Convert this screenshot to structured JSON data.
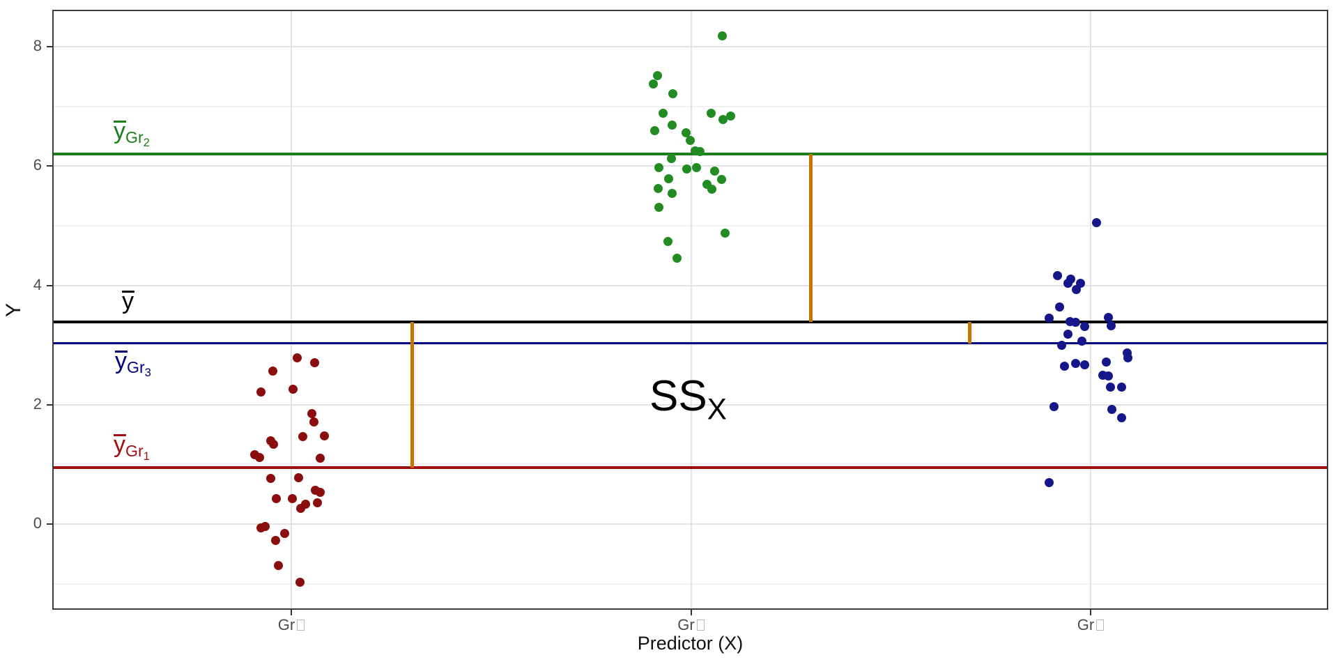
{
  "figure": {
    "y_axis": {
      "title": "Y",
      "ticks": [
        {
          "value": 0,
          "label": "0"
        },
        {
          "value": 2,
          "label": "2"
        },
        {
          "value": 4,
          "label": "4"
        },
        {
          "value": 6,
          "label": "6"
        },
        {
          "value": 8,
          "label": "8"
        }
      ]
    },
    "x_axis": {
      "title": "Predictor (X)",
      "ticks": [
        {
          "x": 1,
          "label": "Gr",
          "glyph_missing": true
        },
        {
          "x": 2,
          "label": "Gr",
          "glyph_missing": true
        },
        {
          "x": 3,
          "label": "Gr",
          "glyph_missing": true
        }
      ]
    },
    "annotation": {
      "main": "SS",
      "sub": "X",
      "color": "#c87800"
    }
  },
  "chart_data": {
    "type": "scatter",
    "title": "",
    "xlabel": "Predictor (X)",
    "ylabel": "Y",
    "ylim": [
      -1.4,
      8.6
    ],
    "x_categories": [
      "Gr1",
      "Gr2",
      "Gr3"
    ],
    "grid": {
      "major_y": [
        0,
        2,
        4,
        6,
        8
      ],
      "minor_y": [
        -1,
        1,
        3,
        5,
        7
      ],
      "major_x": [
        1,
        2,
        3
      ]
    },
    "legend": "none",
    "series": [
      {
        "name": "Gr1",
        "color": "#8b0e0e",
        "points": [
          [
            1.014,
            2.79
          ],
          [
            1.058,
            2.7
          ],
          [
            0.953,
            2.56
          ],
          [
            1.005,
            2.26
          ],
          [
            0.925,
            2.21
          ],
          [
            1.051,
            1.85
          ],
          [
            1.056,
            1.71
          ],
          [
            1.082,
            1.48
          ],
          [
            1.028,
            1.46
          ],
          [
            0.949,
            1.4
          ],
          [
            0.956,
            1.34
          ],
          [
            0.909,
            1.16
          ],
          [
            0.92,
            1.12
          ],
          [
            1.073,
            1.1
          ],
          [
            1.019,
            0.78
          ],
          [
            0.949,
            0.77
          ],
          [
            1.061,
            0.57
          ],
          [
            1.073,
            0.53
          ],
          [
            0.962,
            0.43
          ],
          [
            1.002,
            0.43
          ],
          [
            1.065,
            0.36
          ],
          [
            1.035,
            0.33
          ],
          [
            1.023,
            0.26
          ],
          [
            0.935,
            -0.04
          ],
          [
            0.925,
            -0.07
          ],
          [
            0.984,
            -0.16
          ],
          [
            0.96,
            -0.28
          ],
          [
            0.967,
            -0.7
          ],
          [
            1.021,
            -0.97
          ]
        ]
      },
      {
        "name": "Gr2",
        "color": "#228b22",
        "points": [
          [
            2.078,
            8.18
          ],
          [
            1.916,
            7.52
          ],
          [
            1.906,
            7.37
          ],
          [
            1.955,
            7.21
          ],
          [
            2.051,
            6.89
          ],
          [
            1.93,
            6.88
          ],
          [
            2.099,
            6.84
          ],
          [
            2.08,
            6.78
          ],
          [
            1.953,
            6.69
          ],
          [
            1.909,
            6.59
          ],
          [
            1.988,
            6.56
          ],
          [
            1.998,
            6.43
          ],
          [
            2.01,
            6.25
          ],
          [
            2.023,
            6.24
          ],
          [
            1.951,
            6.12
          ],
          [
            1.92,
            5.97
          ],
          [
            2.014,
            5.97
          ],
          [
            1.99,
            5.95
          ],
          [
            2.059,
            5.91
          ],
          [
            1.944,
            5.79
          ],
          [
            2.077,
            5.77
          ],
          [
            2.04,
            5.69
          ],
          [
            1.918,
            5.62
          ],
          [
            2.052,
            5.61
          ],
          [
            1.953,
            5.54
          ],
          [
            1.92,
            5.31
          ],
          [
            2.085,
            4.88
          ],
          [
            1.942,
            4.73
          ],
          [
            1.965,
            4.46
          ]
        ]
      },
      {
        "name": "Gr3",
        "color": "#16168b",
        "points": [
          [
            3.014,
            5.05
          ],
          [
            2.918,
            4.16
          ],
          [
            2.951,
            4.11
          ],
          [
            2.974,
            4.04
          ],
          [
            2.944,
            4.03
          ],
          [
            2.965,
            3.93
          ],
          [
            2.922,
            3.64
          ],
          [
            3.045,
            3.46
          ],
          [
            2.897,
            3.45
          ],
          [
            2.949,
            3.39
          ],
          [
            2.963,
            3.38
          ],
          [
            3.052,
            3.32
          ],
          [
            2.986,
            3.31
          ],
          [
            2.944,
            3.18
          ],
          [
            2.979,
            3.06
          ],
          [
            2.927,
            2.99
          ],
          [
            3.091,
            2.87
          ],
          [
            3.094,
            2.79
          ],
          [
            3.04,
            2.71
          ],
          [
            2.962,
            2.69
          ],
          [
            2.986,
            2.67
          ],
          [
            2.935,
            2.64
          ],
          [
            3.031,
            2.49
          ],
          [
            3.045,
            2.48
          ],
          [
            3.049,
            2.3
          ],
          [
            3.077,
            2.29
          ],
          [
            2.909,
            1.97
          ],
          [
            3.054,
            1.92
          ],
          [
            3.078,
            1.78
          ],
          [
            2.897,
            0.69
          ]
        ]
      }
    ],
    "mean_lines": [
      {
        "id": "grand",
        "y": 3.39,
        "color": "#000000",
        "lw": 4,
        "label": {
          "main": "y",
          "sub": "",
          "index": ""
        }
      },
      {
        "id": "gr1",
        "y": 0.95,
        "color": "#a01010",
        "lw": 4,
        "label": {
          "main": "y",
          "sub": "Gr",
          "index": "1"
        }
      },
      {
        "id": "gr2",
        "y": 6.2,
        "color": "#1b801b",
        "lw": 4,
        "label": {
          "main": "y",
          "sub": "Gr",
          "index": "2"
        }
      },
      {
        "id": "gr3",
        "y": 3.03,
        "color": "#000080",
        "lw": 3,
        "label": {
          "main": "y",
          "sub": "Gr",
          "index": "3"
        }
      }
    ],
    "segments": [
      {
        "x": 1.302,
        "y1": 3.39,
        "y2": 0.95,
        "color": "#c87400"
      },
      {
        "x": 2.3,
        "y1": 6.2,
        "y2": 3.39,
        "color": "#c87400"
      },
      {
        "x": 2.697,
        "y1": 3.39,
        "y2": 3.03,
        "color": "#c87400"
      }
    ],
    "annotation": {
      "text": "SSX",
      "x": 2.0,
      "y": 2.0
    }
  }
}
